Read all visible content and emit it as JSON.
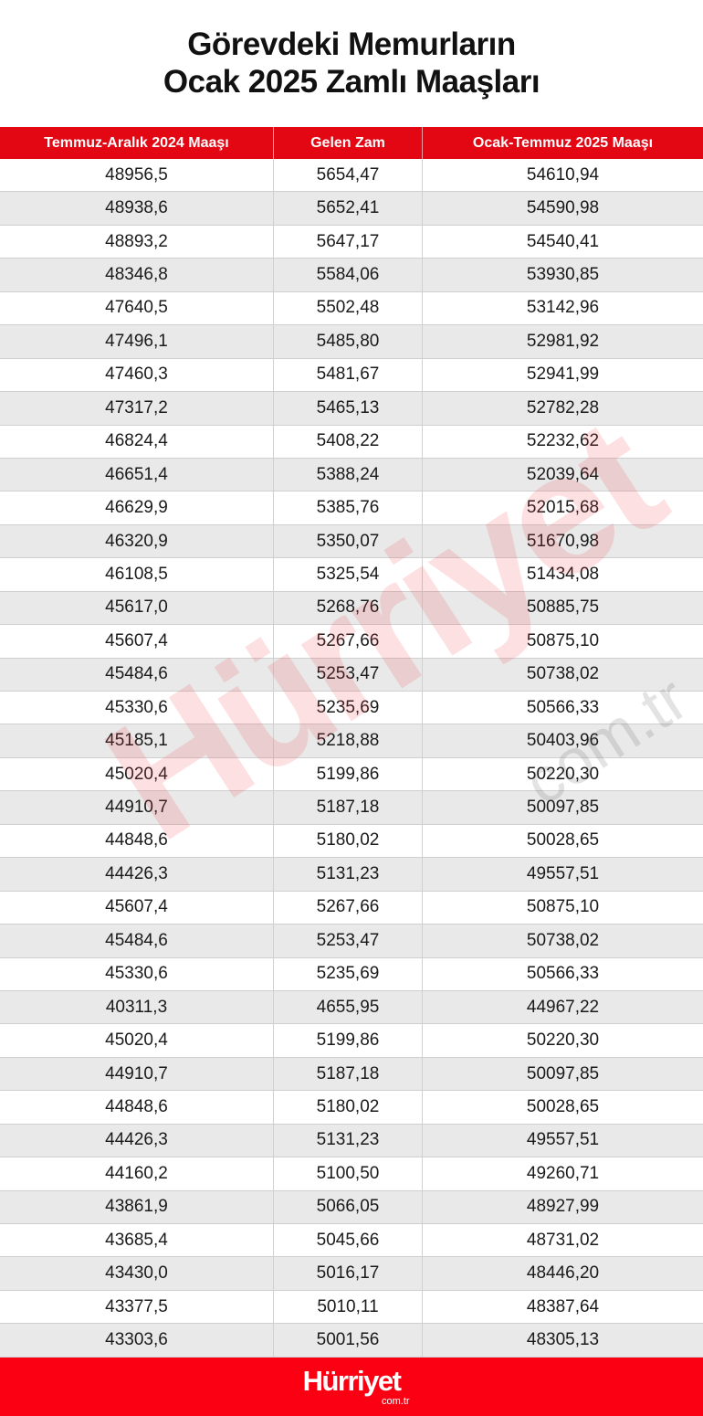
{
  "title": {
    "line1": "Görevdeki Memurların",
    "line2": "Ocak 2025 Zamlı Maaşları"
  },
  "columns": [
    "Temmuz-Aralık 2024 Maaşı",
    "Gelen Zam",
    "Ocak-Temmuz 2025 Maaşı"
  ],
  "rows": [
    [
      "48956,5",
      "5654,47",
      "54610,94"
    ],
    [
      "48938,6",
      "5652,41",
      "54590,98"
    ],
    [
      "48893,2",
      "5647,17",
      "54540,41"
    ],
    [
      "48346,8",
      "5584,06",
      "53930,85"
    ],
    [
      "47640,5",
      "5502,48",
      "53142,96"
    ],
    [
      "47496,1",
      "5485,80",
      "52981,92"
    ],
    [
      "47460,3",
      "5481,67",
      "52941,99"
    ],
    [
      "47317,2",
      "5465,13",
      "52782,28"
    ],
    [
      "46824,4",
      "5408,22",
      "52232,62"
    ],
    [
      "46651,4",
      "5388,24",
      "52039,64"
    ],
    [
      "46629,9",
      "5385,76",
      "52015,68"
    ],
    [
      "46320,9",
      "5350,07",
      "51670,98"
    ],
    [
      "46108,5",
      "5325,54",
      "51434,08"
    ],
    [
      "45617,0",
      "5268,76",
      "50885,75"
    ],
    [
      "45607,4",
      "5267,66",
      "50875,10"
    ],
    [
      "45484,6",
      "5253,47",
      "50738,02"
    ],
    [
      "45330,6",
      "5235,69",
      "50566,33"
    ],
    [
      "45185,1",
      "5218,88",
      "50403,96"
    ],
    [
      "45020,4",
      "5199,86",
      "50220,30"
    ],
    [
      "44910,7",
      "5187,18",
      "50097,85"
    ],
    [
      "44848,6",
      "5180,02",
      "50028,65"
    ],
    [
      "44426,3",
      "5131,23",
      "49557,51"
    ],
    [
      "45607,4",
      "5267,66",
      "50875,10"
    ],
    [
      "45484,6",
      "5253,47",
      "50738,02"
    ],
    [
      "45330,6",
      "5235,69",
      "50566,33"
    ],
    [
      "40311,3",
      "4655,95",
      "44967,22"
    ],
    [
      "45020,4",
      "5199,86",
      "50220,30"
    ],
    [
      "44910,7",
      "5187,18",
      "50097,85"
    ],
    [
      "44848,6",
      "5180,02",
      "50028,65"
    ],
    [
      "44426,3",
      "5131,23",
      "49557,51"
    ],
    [
      "44160,2",
      "5100,50",
      "49260,71"
    ],
    [
      "43861,9",
      "5066,05",
      "48927,99"
    ],
    [
      "43685,4",
      "5045,66",
      "48731,02"
    ],
    [
      "43430,0",
      "5016,17",
      "48446,20"
    ],
    [
      "43377,5",
      "5010,11",
      "48387,64"
    ],
    [
      "43303,6",
      "5001,56",
      "48305,13"
    ]
  ],
  "watermark": {
    "brand": "Hürriyet",
    "domain": "com.tr"
  },
  "footer": {
    "brand": "Hürriyet",
    "domain": "com.tr"
  },
  "colors": {
    "header": "#e30613",
    "footer": "#fa0012",
    "stripe": "#e9e9e9"
  }
}
